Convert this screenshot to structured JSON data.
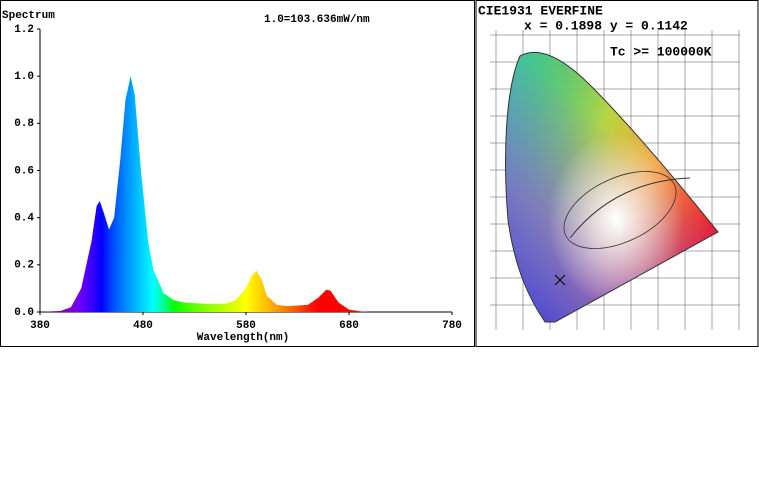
{
  "chart_data": {
    "type": "area",
    "title": "Spectrum",
    "annotation": "1.0=103.636mW/nm",
    "x_label": "Wavelength(nm)",
    "x": [
      380,
      400,
      410,
      420,
      430,
      435,
      438,
      442,
      447,
      452,
      458,
      463,
      468,
      472,
      478,
      485,
      490,
      500,
      510,
      520,
      540,
      560,
      570,
      580,
      585,
      590,
      595,
      600,
      610,
      620,
      640,
      650,
      658,
      662,
      670,
      680,
      690,
      700,
      780
    ],
    "values": [
      0,
      0.005,
      0.02,
      0.1,
      0.3,
      0.45,
      0.47,
      0.42,
      0.35,
      0.4,
      0.65,
      0.9,
      1.0,
      0.92,
      0.6,
      0.3,
      0.18,
      0.08,
      0.05,
      0.04,
      0.035,
      0.035,
      0.05,
      0.1,
      0.15,
      0.175,
      0.14,
      0.07,
      0.03,
      0.025,
      0.03,
      0.06,
      0.095,
      0.09,
      0.04,
      0.01,
      0.003,
      0,
      0
    ],
    "xlim": [
      380,
      780
    ],
    "xticks": [
      380,
      480,
      580,
      680,
      780
    ],
    "ylim": [
      0,
      1.2
    ],
    "yticks": [
      {
        "value": 0,
        "label": "0.0"
      },
      0.2,
      0.4,
      0.6,
      0.8,
      {
        "value": 1,
        "label": "1.0"
      },
      1.2
    ]
  },
  "cie_panel": {
    "title": "CIE1931 EVERFINE",
    "coordinates": "x = 0.1898 y = 0.1142",
    "tc": "Tc >= 100000K"
  }
}
